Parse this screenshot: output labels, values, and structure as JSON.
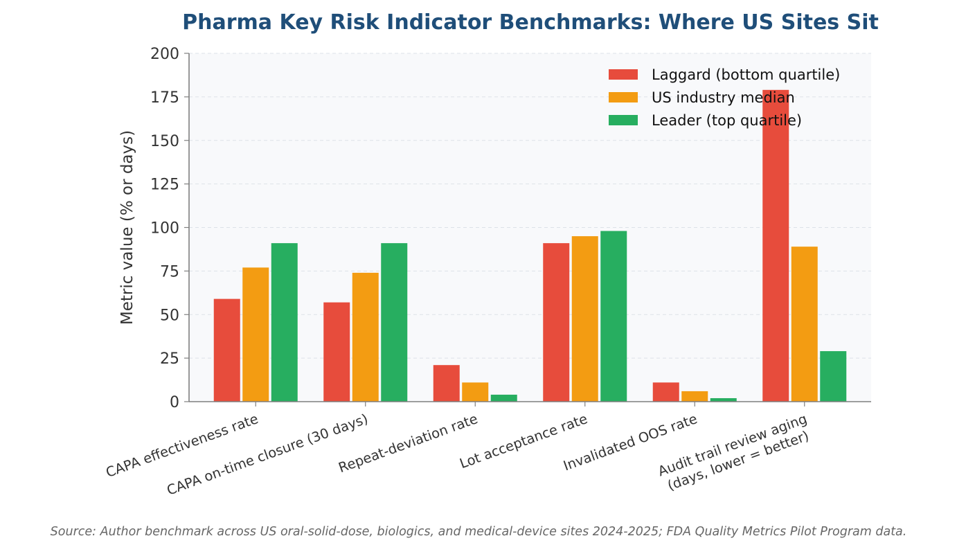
{
  "chart_data": {
    "type": "bar",
    "title": "Pharma Key Risk Indicator Benchmarks: Where US Sites Sit",
    "ylabel": "Metric value (% or days)",
    "xlabel": "",
    "ylim": [
      0,
      200
    ],
    "yticks": [
      0,
      25,
      50,
      75,
      100,
      125,
      150,
      175,
      200
    ],
    "grid": "horizontal dashed",
    "legend_position": "top-right",
    "categories": [
      [
        "CAPA effectiveness rate"
      ],
      [
        "CAPA on-time closure (30 days)"
      ],
      [
        "Repeat-deviation rate"
      ],
      [
        "Lot acceptance rate"
      ],
      [
        "Invalidated OOS rate"
      ],
      [
        "Audit trail review aging",
        "(days, lower = better)"
      ]
    ],
    "series": [
      {
        "name": "Laggard (bottom quartile)",
        "color": "#e74c3c",
        "values": [
          59,
          57,
          21,
          91,
          11,
          179
        ]
      },
      {
        "name": "US industry median",
        "color": "#f39c12",
        "values": [
          77,
          74,
          11,
          95,
          6,
          89
        ]
      },
      {
        "name": "Leader (top quartile)",
        "color": "#27ae60",
        "values": [
          91,
          91,
          4,
          98,
          2,
          29
        ]
      }
    ]
  },
  "caption": "Source: Author benchmark across US oral-solid-dose, biologics, and medical-device sites 2024-2025; FDA Quality Metrics Pilot Program data.",
  "colors": {
    "title": "#1f4e79",
    "plot_background": "#f8f9fb",
    "axis": "#7f7f7f",
    "tick_text": "#333333"
  }
}
